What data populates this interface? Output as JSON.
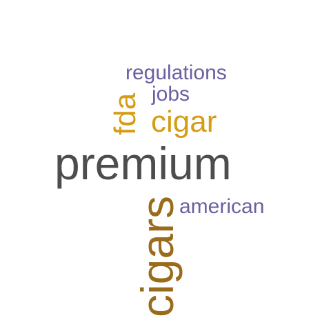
{
  "colors": {
    "purple": "#6a5fa1",
    "gold": "#d59c14",
    "gray": "#4d4d4d",
    "brown": "#9a6b1a"
  },
  "words": {
    "regulations": "regulations",
    "jobs": "jobs",
    "fda": "fda",
    "cigar": "cigar",
    "premium": "premium",
    "american": "american",
    "cigars": "cigars"
  }
}
